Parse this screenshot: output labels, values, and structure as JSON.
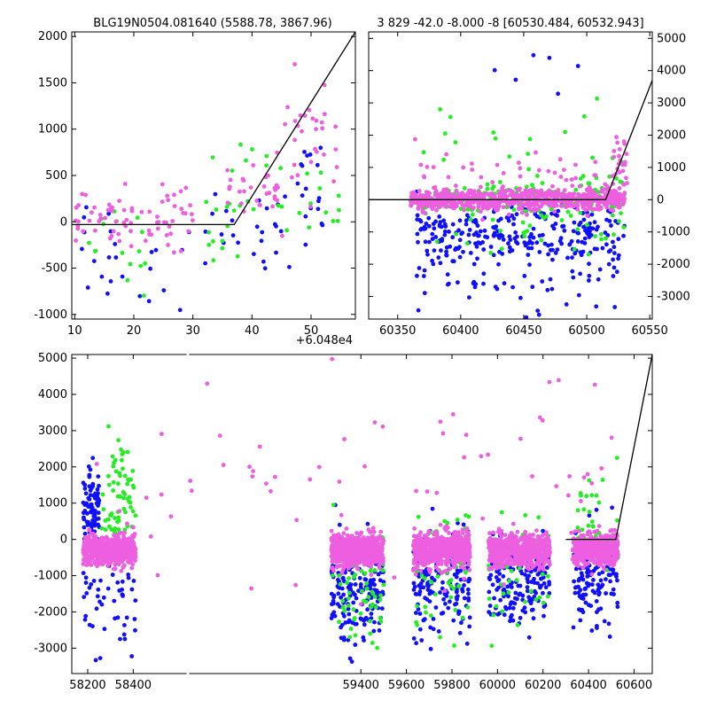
{
  "colors": {
    "blue": "#1010ff",
    "green": "#22ee22",
    "pink": "#ee5ee0",
    "line": "#000000"
  },
  "chart_data": [
    {
      "type": "scatter",
      "title": "BLG19N0504.081640 (5588.78, 3867.96)",
      "xlabel": "",
      "ylabel": "",
      "xlim": [
        9.5,
        57.5
      ],
      "ylim": [
        -1050,
        2050
      ],
      "x_offset_label": "+6.048e4",
      "x_ticks": [
        10,
        20,
        30,
        40,
        50
      ],
      "y_ticks": [
        -1000,
        -500,
        0,
        500,
        1000,
        1500,
        2000
      ],
      "y_axis_side": "left",
      "grid": false,
      "fit_line": {
        "x": [
          9.5,
          37.0,
          57.5
        ],
        "y": [
          -30,
          -30,
          2050
        ]
      },
      "series": [
        {
          "color": "blue",
          "clusters": [
            {
              "x_range": [
                10,
                17
              ],
              "y_center": -250,
              "y_spread": 600,
              "n": 14
            },
            {
              "x_range": [
                18,
                30
              ],
              "y_center": -500,
              "y_spread": 550,
              "n": 10
            },
            {
              "x_range": [
                32,
                47
              ],
              "y_center": 0,
              "y_spread": 500,
              "n": 26
            },
            {
              "x_range": [
                47,
                53
              ],
              "y_center": 350,
              "y_spread": 450,
              "n": 18
            }
          ]
        },
        {
          "color": "green",
          "clusters": [
            {
              "x_range": [
                10,
                22
              ],
              "y_center": -300,
              "y_spread": 400,
              "n": 16
            },
            {
              "x_range": [
                32,
                38
              ],
              "y_center": 100,
              "y_spread": 650,
              "n": 16
            },
            {
              "x_range": [
                38,
                55
              ],
              "y_center": 250,
              "y_spread": 500,
              "n": 22
            }
          ]
        },
        {
          "color": "pink",
          "clusters": [
            {
              "x_range": [
                10,
                30
              ],
              "y_center": 50,
              "y_spread": 300,
              "n": 75
            },
            {
              "x_range": [
                35,
                45
              ],
              "y_center": 350,
              "y_spread": 250,
              "n": 30
            },
            {
              "x_range": [
                45,
                55
              ],
              "y_center": 900,
              "y_spread": 550,
              "n": 30
            }
          ]
        }
      ]
    },
    {
      "type": "scatter",
      "title": "3 829 -42.0 -8.000 -8 [60530.484, 60532.943]",
      "xlabel": "",
      "ylabel": "",
      "xlim": [
        60327,
        60552
      ],
      "ylim": [
        -3700,
        5200
      ],
      "x_ticks": [
        60350,
        60400,
        60450,
        60500,
        60550
      ],
      "y_ticks": [
        -3000,
        -2000,
        -1000,
        0,
        1000,
        2000,
        3000,
        4000,
        5000
      ],
      "y_axis_side": "right",
      "grid": false,
      "fit_line": {
        "x": [
          60327,
          60515,
          60552
        ],
        "y": [
          0,
          0,
          3700
        ]
      },
      "series": [
        {
          "color": "blue",
          "clusters": [
            {
              "x_range": [
                60365,
                60530
              ],
              "y_center": -1100,
              "y_spread": 900,
              "n": 260
            },
            {
              "x_range": [
                60365,
                60530
              ],
              "y_center": -2500,
              "y_spread": 1100,
              "n": 55
            },
            {
              "x_range": [
                60390,
                60510
              ],
              "y_center": 3500,
              "y_spread": 1200,
              "n": 6
            }
          ]
        },
        {
          "color": "green",
          "clusters": [
            {
              "x_range": [
                60370,
                60530
              ],
              "y_center": 0,
              "y_spread": 500,
              "n": 190
            },
            {
              "x_range": [
                60370,
                60530
              ],
              "y_center": 1400,
              "y_spread": 1300,
              "n": 20
            },
            {
              "x_range": [
                60370,
                60530
              ],
              "y_center": -1000,
              "y_spread": 700,
              "n": 25
            }
          ]
        },
        {
          "color": "pink",
          "clusters": [
            {
              "x_range": [
                60360,
                60530
              ],
              "y_center": 0,
              "y_spread": 300,
              "n": 700
            },
            {
              "x_range": [
                60360,
                60530
              ],
              "y_center": 800,
              "y_spread": 600,
              "n": 40
            },
            {
              "x_range": [
                60520,
                60532
              ],
              "y_center": 1200,
              "y_spread": 900,
              "n": 25
            }
          ]
        }
      ]
    },
    {
      "type": "scatter",
      "title": "",
      "xlabel": "",
      "ylabel": "",
      "xlim": [
        58130,
        60680
      ],
      "ylim": [
        -3700,
        5100
      ],
      "x_ticks": [
        58200,
        58400,
        59400,
        59600,
        59800,
        60000,
        60200,
        60400,
        60600
      ],
      "y_ticks": [
        -3000,
        -2000,
        -1000,
        0,
        1000,
        2000,
        3000,
        4000,
        5000
      ],
      "y_axis_side": "left",
      "grid": false,
      "fit_line": {
        "x": [
          60300,
          60520,
          60680
        ],
        "y": [
          0,
          0,
          5100
        ]
      },
      "series": [
        {
          "color": "blue",
          "clusters": [
            {
              "x_range": [
                58180,
                58250
              ],
              "y_center": 900,
              "y_spread": 900,
              "n": 90
            },
            {
              "x_range": [
                58180,
                58410
              ],
              "y_center": -1300,
              "y_spread": 1400,
              "n": 55
            },
            {
              "x_range": [
                59270,
                59500
              ],
              "y_center": -1300,
              "y_spread": 1200,
              "n": 190
            },
            {
              "x_range": [
                59630,
                59880
              ],
              "y_center": -1200,
              "y_spread": 1300,
              "n": 170
            },
            {
              "x_range": [
                59960,
                60230
              ],
              "y_center": -1100,
              "y_spread": 1100,
              "n": 180
            },
            {
              "x_range": [
                60330,
                60530
              ],
              "y_center": -1000,
              "y_spread": 1200,
              "n": 140
            }
          ]
        },
        {
          "color": "green",
          "clusters": [
            {
              "x_range": [
                58260,
                58410
              ],
              "y_center": 1000,
              "y_spread": 1500,
              "n": 70
            },
            {
              "x_range": [
                59270,
                59500
              ],
              "y_center": -1400,
              "y_spread": 1700,
              "n": 70
            },
            {
              "x_range": [
                59630,
                59880
              ],
              "y_center": -600,
              "y_spread": 1600,
              "n": 60
            },
            {
              "x_range": [
                59960,
                60230
              ],
              "y_center": -800,
              "y_spread": 1600,
              "n": 60
            },
            {
              "x_range": [
                60330,
                60530
              ],
              "y_center": 300,
              "y_spread": 1300,
              "n": 45
            }
          ]
        },
        {
          "color": "pink",
          "clusters": [
            {
              "x_range": [
                58180,
                58410
              ],
              "y_center": -300,
              "y_spread": 350,
              "n": 550
            },
            {
              "x_range": [
                59270,
                59500
              ],
              "y_center": -300,
              "y_spread": 400,
              "n": 600
            },
            {
              "x_range": [
                59630,
                59880
              ],
              "y_center": -300,
              "y_spread": 400,
              "n": 600
            },
            {
              "x_range": [
                59960,
                60230
              ],
              "y_center": -300,
              "y_spread": 400,
              "n": 600
            },
            {
              "x_range": [
                60330,
                60530
              ],
              "y_center": -300,
              "y_spread": 400,
              "n": 450
            },
            {
              "x_range": [
                58180,
                60530
              ],
              "y_center": 1500,
              "y_spread": 2500,
              "n": 70
            }
          ]
        }
      ]
    }
  ]
}
